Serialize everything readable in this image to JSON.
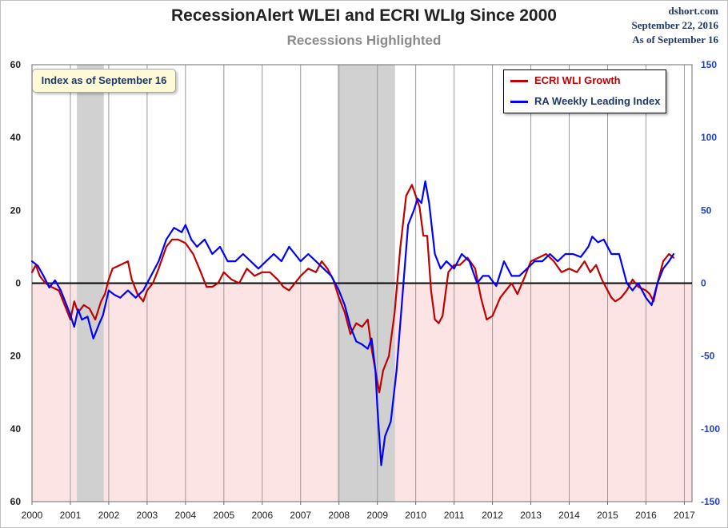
{
  "title": "RecessionAlert WLEI and ECRI WLIg Since 2000",
  "subtitle": "Recessions Highlighted",
  "credit": {
    "source": "dshort.com",
    "date": "September 22, 2016",
    "as_of": "As of September 16"
  },
  "note": "Index as of September 16",
  "colors": {
    "ecri": "#c00000",
    "ra": "#0000ff",
    "recession_band": "#cfcfcf",
    "negative_zone": "#fde4e4",
    "left_axis_text": "#222222",
    "right_axis_text": "#1f3fd0"
  },
  "chart_data": {
    "type": "line",
    "title": "RecessionAlert WLEI and ECRI WLIg Since 2000",
    "subtitle": "Recessions Highlighted",
    "x_ticks": [
      "2000",
      "2001",
      "2002",
      "2003",
      "2004",
      "2005",
      "2006",
      "2007",
      "2008",
      "2009",
      "2010",
      "2011",
      "2012",
      "2013",
      "2014",
      "2015",
      "2016",
      "2017"
    ],
    "xlim": [
      2000,
      2017.2
    ],
    "left_axis": {
      "ylim": [
        -60,
        60
      ],
      "tick_values": [
        60,
        40,
        20,
        0,
        -20,
        -40,
        -60
      ],
      "tick_labels": [
        "60",
        "40",
        "20",
        "0",
        "20",
        "40",
        "60"
      ]
    },
    "right_axis": {
      "ylim": [
        -150,
        150
      ],
      "tick_values": [
        150,
        100,
        50,
        0,
        -50,
        -100,
        -150
      ],
      "tick_labels": [
        "150",
        "100",
        "50",
        "0",
        "-50",
        "-100",
        "-150"
      ]
    },
    "grid": "vertical lines at each year",
    "zero_line": true,
    "negative_region_shaded": true,
    "legend_position": "top-right",
    "recessions": [
      {
        "start": 2001.17,
        "end": 2001.87
      },
      {
        "start": 2007.96,
        "end": 2009.46
      }
    ],
    "series": [
      {
        "name": "ECRI WLI Growth",
        "axis": "left",
        "x": [
          2000.0,
          2000.1,
          2000.2,
          2000.35,
          2000.5,
          2000.7,
          2000.85,
          2001.0,
          2001.1,
          2001.2,
          2001.35,
          2001.5,
          2001.65,
          2001.8,
          2001.9,
          2002.0,
          2002.1,
          2002.3,
          2002.5,
          2002.6,
          2002.75,
          2002.9,
          2003.0,
          2003.15,
          2003.3,
          2003.5,
          2003.65,
          2003.8,
          2004.0,
          2004.2,
          2004.4,
          2004.55,
          2004.7,
          2004.85,
          2005.0,
          2005.2,
          2005.4,
          2005.6,
          2005.8,
          2006.0,
          2006.2,
          2006.4,
          2006.55,
          2006.7,
          2006.85,
          2007.0,
          2007.2,
          2007.4,
          2007.55,
          2007.7,
          2007.85,
          2008.0,
          2008.15,
          2008.3,
          2008.45,
          2008.6,
          2008.75,
          2008.85,
          2008.95,
          2009.05,
          2009.15,
          2009.3,
          2009.45,
          2009.6,
          2009.75,
          2009.9,
          2010.0,
          2010.1,
          2010.2,
          2010.3,
          2010.4,
          2010.5,
          2010.6,
          2010.7,
          2010.85,
          2011.0,
          2011.15,
          2011.35,
          2011.55,
          2011.7,
          2011.85,
          2012.0,
          2012.2,
          2012.35,
          2012.5,
          2012.65,
          2012.85,
          2013.0,
          2013.2,
          2013.4,
          2013.6,
          2013.8,
          2014.0,
          2014.2,
          2014.4,
          2014.55,
          2014.7,
          2014.85,
          2015.0,
          2015.1,
          2015.2,
          2015.35,
          2015.5,
          2015.65,
          2015.8,
          2016.0,
          2016.1,
          2016.2,
          2016.3,
          2016.45,
          2016.6,
          2016.72
        ],
        "values": [
          3,
          5,
          2,
          0,
          -1,
          -2,
          -6,
          -10,
          -5,
          -8,
          -6,
          -7,
          -10,
          -5,
          -3,
          1,
          4,
          5,
          6,
          1,
          -3,
          -5,
          -2,
          0,
          4,
          10,
          12,
          12,
          11,
          8,
          3,
          -1,
          -1,
          0,
          3,
          1,
          0,
          4,
          2,
          3,
          3,
          1,
          -1,
          -2,
          0,
          2,
          4,
          3,
          6,
          4,
          1,
          -4,
          -8,
          -14,
          -11,
          -12,
          -10,
          -18,
          -24,
          -30,
          -24,
          -20,
          -8,
          10,
          24,
          27,
          24,
          21,
          13,
          13,
          -2,
          -10,
          -11,
          -9,
          3,
          5,
          5,
          7,
          4,
          -4,
          -10,
          -9,
          -4,
          -2,
          0,
          -3,
          2,
          6,
          7,
          8,
          6,
          3,
          4,
          3,
          6,
          3,
          5,
          1,
          -2,
          -4,
          -5,
          -4,
          -2,
          1,
          -1,
          -2,
          -3,
          -5,
          0,
          6,
          8,
          7
        ]
      },
      {
        "name": "RA Weekly Leading Index",
        "axis": "right",
        "x": [
          2000.0,
          2000.15,
          2000.3,
          2000.45,
          2000.6,
          2000.75,
          2000.9,
          2001.0,
          2001.1,
          2001.2,
          2001.3,
          2001.45,
          2001.6,
          2001.75,
          2001.85,
          2002.0,
          2002.15,
          2002.3,
          2002.5,
          2002.7,
          2002.9,
          2003.1,
          2003.3,
          2003.5,
          2003.7,
          2003.9,
          2004.0,
          2004.15,
          2004.3,
          2004.5,
          2004.7,
          2004.9,
          2005.1,
          2005.3,
          2005.5,
          2005.7,
          2005.9,
          2006.1,
          2006.3,
          2006.5,
          2006.7,
          2006.85,
          2007.0,
          2007.2,
          2007.4,
          2007.6,
          2007.8,
          2008.0,
          2008.15,
          2008.3,
          2008.45,
          2008.6,
          2008.75,
          2008.85,
          2008.95,
          2009.0,
          2009.1,
          2009.2,
          2009.35,
          2009.5,
          2009.65,
          2009.8,
          2009.95,
          2010.05,
          2010.15,
          2010.25,
          2010.35,
          2010.5,
          2010.65,
          2010.8,
          2011.0,
          2011.2,
          2011.4,
          2011.6,
          2011.75,
          2011.9,
          2012.1,
          2012.3,
          2012.5,
          2012.7,
          2012.9,
          2013.1,
          2013.3,
          2013.5,
          2013.7,
          2013.9,
          2014.1,
          2014.3,
          2014.5,
          2014.6,
          2014.75,
          2014.9,
          2015.1,
          2015.3,
          2015.5,
          2015.65,
          2015.8,
          2016.0,
          2016.15,
          2016.3,
          2016.45,
          2016.6,
          2016.72
        ],
        "values": [
          15,
          12,
          5,
          -3,
          2,
          -5,
          -15,
          -22,
          -30,
          -18,
          -25,
          -23,
          -38,
          -28,
          -22,
          -5,
          -8,
          -10,
          -5,
          -10,
          -5,
          5,
          15,
          30,
          38,
          35,
          40,
          30,
          25,
          30,
          20,
          25,
          15,
          15,
          20,
          15,
          10,
          15,
          20,
          15,
          25,
          20,
          15,
          20,
          15,
          10,
          5,
          -5,
          -15,
          -30,
          -40,
          -42,
          -45,
          -38,
          -60,
          -85,
          -125,
          -105,
          -95,
          -60,
          -10,
          40,
          50,
          58,
          55,
          70,
          55,
          20,
          10,
          15,
          10,
          20,
          15,
          0,
          5,
          5,
          -2,
          15,
          5,
          5,
          10,
          15,
          15,
          20,
          15,
          20,
          20,
          18,
          25,
          32,
          28,
          30,
          20,
          20,
          0,
          -5,
          0,
          -10,
          -15,
          0,
          10,
          15,
          20
        ]
      }
    ]
  }
}
